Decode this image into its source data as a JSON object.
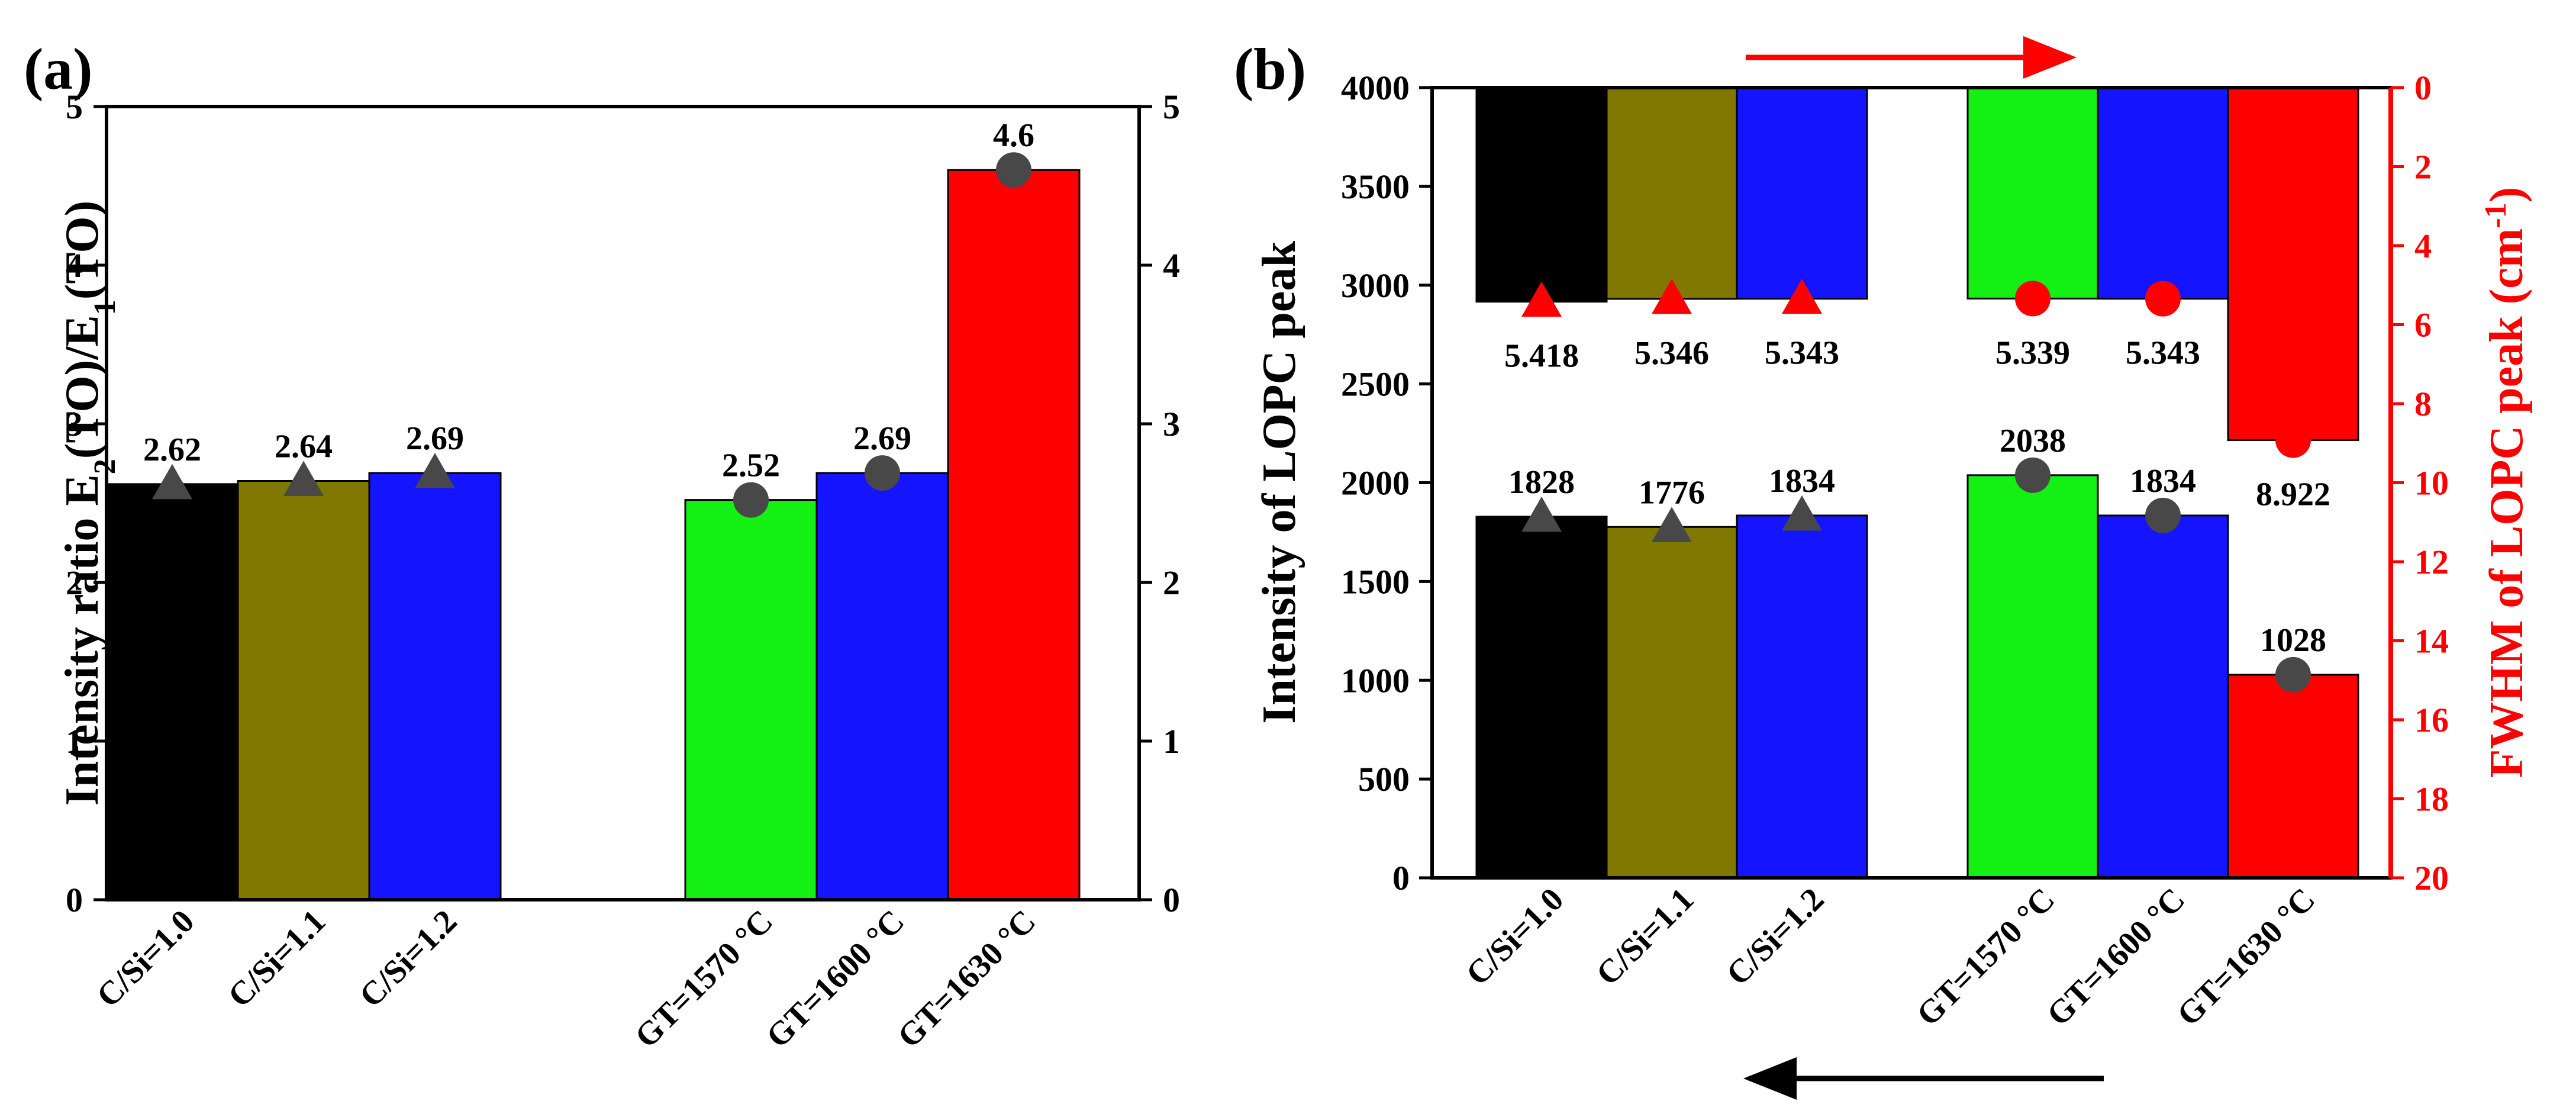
{
  "figure": {
    "panel_a_label": "(a)",
    "panel_b_label": "(b)"
  },
  "colors": {
    "black": "#000000",
    "olive": "#807800",
    "blue": "#1414ff",
    "green": "#14f014",
    "red": "#ff0000",
    "marker_gray": "#484848"
  },
  "chart_data": [
    {
      "id": "a",
      "type": "bar",
      "title": "",
      "ylabel_parts": [
        "Intensity ratio E",
        "2",
        "(TO)/E",
        "1",
        "(TO)"
      ],
      "xlabel": "",
      "categories": [
        "C/Si=1.0",
        "C/Si=1.1",
        "C/Si=1.2",
        "GT=1570 °C",
        "GT=1600 °C",
        "GT=1630 °C"
      ],
      "values": [
        2.62,
        2.64,
        2.69,
        2.52,
        2.69,
        4.6
      ],
      "labels": [
        "2.62",
        "2.64",
        "2.69",
        "2.52",
        "2.69",
        "4.6"
      ],
      "bar_colors": [
        "#000000",
        "#807800",
        "#1414ff",
        "#14f014",
        "#1414ff",
        "#ff0000"
      ],
      "markers": [
        "triangle",
        "triangle",
        "triangle",
        "circle",
        "circle",
        "circle"
      ],
      "ylim": [
        0,
        5
      ],
      "yticks": [
        "0",
        "1",
        "2",
        "3",
        "4",
        "5"
      ],
      "right_axis_mirror": true,
      "grid": false
    },
    {
      "id": "b",
      "type": "bar",
      "title": "",
      "ylabel_left": "Intensity of LOPC peak",
      "ylabel_right_parts": [
        "FWHM of LOPC peak (cm",
        "-1",
        ")"
      ],
      "categories": [
        "C/Si=1.0",
        "C/Si=1.1",
        "C/Si=1.2",
        "GT=1570 °C",
        "GT=1600 °C",
        "GT=1630 °C"
      ],
      "bar_colors": [
        "#000000",
        "#807800",
        "#1414ff",
        "#14f014",
        "#1414ff",
        "#ff0000"
      ],
      "series": [
        {
          "axis": "left",
          "values": [
            1828,
            1776,
            1834,
            2038,
            1834,
            1028
          ],
          "labels": [
            "1828",
            "1776",
            "1834",
            "2038",
            "1834",
            "1028"
          ]
        },
        {
          "axis": "right",
          "values": [
            5.418,
            5.346,
            5.343,
            5.339,
            5.343,
            8.922
          ],
          "labels": [
            "5.418",
            "5.346",
            "5.343",
            "5.339",
            "5.343",
            "8.922"
          ],
          "markers": [
            "triangle",
            "triangle",
            "triangle",
            "circle",
            "circle",
            "circle"
          ]
        }
      ],
      "ylim_left": [
        0,
        4000
      ],
      "yticks_left": [
        "0",
        "500",
        "1000",
        "1500",
        "2000",
        "2500",
        "3000",
        "3500",
        "4000"
      ],
      "ylim_right": [
        0,
        20
      ],
      "right_axis_inverted": true,
      "yticks_right": [
        "0",
        "2",
        "4",
        "6",
        "8",
        "10",
        "12",
        "14",
        "16",
        "18",
        "20"
      ],
      "right_axis_color": "#ff0000",
      "arrows": [
        {
          "color": "#ff0000",
          "direction": "right",
          "position": "top"
        },
        {
          "color": "#000000",
          "direction": "left",
          "position": "bottom"
        }
      ],
      "grid": false
    }
  ]
}
